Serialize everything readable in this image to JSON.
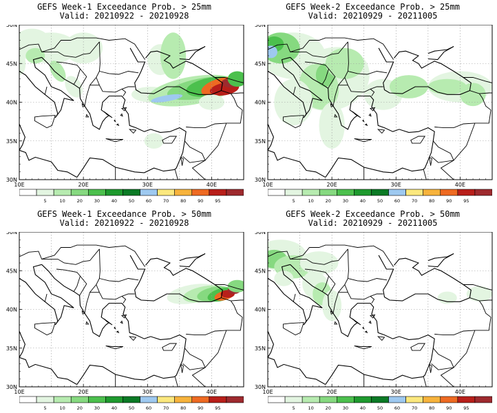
{
  "panels": [
    {
      "title1": "GEFS Week-1 Exceedance Prob. > 25mm",
      "title2": "Valid: 20210922 - 20210928"
    },
    {
      "title1": "GEFS Week-2 Exceedance Prob. > 25mm",
      "title2": "Valid: 20210929 - 20211005"
    },
    {
      "title1": "GEFS Week-1 Exceedance Prob. > 50mm",
      "title2": "Valid: 20210922 - 20210928"
    },
    {
      "title1": "GEFS Week-2 Exceedance Prob. > 50mm",
      "title2": "Valid: 20210929 - 20211005"
    }
  ],
  "map": {
    "lon_labels": [
      "10E",
      "20E",
      "30E",
      "40E"
    ],
    "lat_labels": [
      "50N",
      "45N",
      "40N",
      "35N",
      "30N"
    ],
    "lon_range": [
      10,
      45
    ],
    "lat_range": [
      30,
      50
    ]
  },
  "colorbar": {
    "levels": [
      "5",
      "10",
      "20",
      "30",
      "40",
      "50",
      "60",
      "70",
      "80",
      "90",
      "95"
    ],
    "colors": [
      "#ffffff",
      "#e3f5e1",
      "#b7ebb0",
      "#86d980",
      "#4cc04d",
      "#1e9a2e",
      "#0b7a25",
      "#9ec9f0",
      "#fbe87e",
      "#f7b33c",
      "#ee6a22",
      "#b81f1a",
      "#9e2a2e"
    ]
  }
}
